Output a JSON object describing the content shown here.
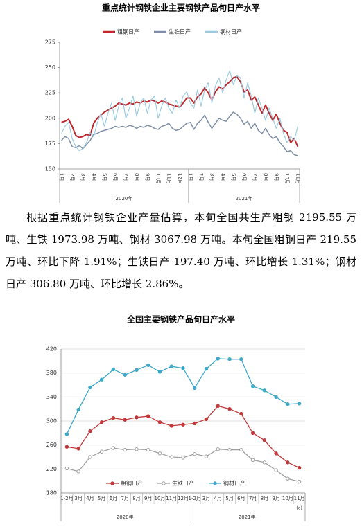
{
  "paragraph": "根据重点统计钢铁企业产量估算，本旬全国共生产粗钢 2195.55 万吨、生铁 1973.98 万吨、钢材 3067.98 万吨。本旬全国粗钢日产 219.55 万吨、环比下降 1.91%；生铁日产 197.40 万吨、环比增长 1.31%；钢材日产 306.80 万吨、环比增长 2.86%。",
  "chart_data": [
    {
      "type": "line",
      "title": "重点统计钢铁企业主要钢铁产品旬日产水平",
      "legend": "top",
      "grid": false,
      "markers": false,
      "ylim": [
        150,
        275
      ],
      "yticks": [
        150,
        175,
        200,
        225,
        250,
        275
      ],
      "groups": [
        "2020年",
        "2021年"
      ],
      "categories": [
        "1月",
        null,
        null,
        "2月",
        null,
        null,
        "3月",
        null,
        null,
        "4月",
        null,
        null,
        "5月",
        null,
        null,
        "6月",
        null,
        null,
        "7月",
        null,
        null,
        "8月",
        null,
        null,
        "9月",
        null,
        null,
        "10月",
        null,
        null,
        "11月",
        null,
        null,
        "12月",
        null,
        null,
        "1月",
        null,
        null,
        "2月",
        null,
        null,
        "3月",
        null,
        null,
        "4月",
        null,
        null,
        "5月",
        null,
        null,
        "6月",
        null,
        null,
        "7月",
        null,
        null,
        "8月",
        null,
        null,
        "9月",
        null,
        null,
        "10月",
        null,
        null,
        "11月"
      ],
      "series": [
        {
          "name": "粗钢日产",
          "color": "#c0282d",
          "width": 2,
          "values": [
            196,
            197,
            199,
            192,
            183,
            181,
            182,
            184,
            183,
            195,
            200,
            203,
            206,
            208,
            210,
            212,
            215,
            214,
            213,
            215,
            214,
            216,
            215,
            217,
            216,
            218,
            217,
            215,
            217,
            216,
            214,
            213,
            212,
            211,
            215,
            220,
            220,
            215,
            221,
            224,
            230,
            225,
            218,
            226,
            231,
            229,
            233,
            236,
            240,
            241,
            236,
            226,
            228,
            218,
            221,
            213,
            205,
            213,
            205,
            198,
            204,
            195,
            188,
            186,
            176,
            180,
            172
          ]
        },
        {
          "name": "生铁日产",
          "color": "#7f8fa6",
          "width": 1.5,
          "values": [
            178,
            182,
            180,
            172,
            171,
            173,
            170,
            174,
            178,
            184,
            185,
            187,
            188,
            189,
            190,
            192,
            191,
            192,
            191,
            193,
            192,
            190,
            192,
            191,
            193,
            192,
            190,
            189,
            192,
            193,
            195,
            190,
            188,
            189,
            192,
            195,
            196,
            189,
            195,
            198,
            203,
            196,
            190,
            195,
            200,
            198,
            197,
            202,
            206,
            204,
            200,
            194,
            197,
            190,
            195,
            188,
            185,
            190,
            184,
            180,
            182,
            176,
            172,
            167,
            168,
            164,
            163
          ]
        },
        {
          "name": "钢材日产",
          "color": "#9ccbe0",
          "width": 1.2,
          "values": [
            185,
            192,
            196,
            180,
            172,
            168,
            170,
            176,
            186,
            182,
            195,
            205,
            192,
            205,
            215,
            198,
            212,
            220,
            200,
            210,
            222,
            202,
            215,
            220,
            205,
            218,
            222,
            200,
            212,
            220,
            210,
            205,
            218,
            210,
            222,
            226,
            215,
            210,
            228,
            212,
            228,
            235,
            215,
            232,
            240,
            225,
            238,
            247,
            233,
            242,
            240,
            220,
            235,
            222,
            205,
            220,
            210,
            198,
            210,
            200,
            190,
            200,
            185,
            176,
            182,
            178,
            192
          ]
        }
      ]
    },
    {
      "type": "line",
      "title": "全国主要钢铁产品旬日产水平",
      "legend": "bottom",
      "grid": true,
      "markers": true,
      "note": "(e)",
      "ylim": [
        180,
        420
      ],
      "yticks": [
        180,
        220,
        260,
        300,
        340,
        380,
        420
      ],
      "groups": [
        "2020年",
        "2021年"
      ],
      "categories": [
        "1-2月",
        "3月",
        "4月",
        "5月",
        "6月",
        "7月",
        "8月",
        "9月",
        "10月",
        "11月",
        "12月",
        "1-2月",
        "3月",
        "4月",
        "5月",
        "6月",
        "7月",
        "8月",
        "9月",
        "10月",
        "11月"
      ],
      "series": [
        {
          "name": "粗钢日产",
          "color": "#c0393b",
          "width": 1.3,
          "values": [
            257,
            254,
            283,
            298,
            305,
            302,
            306,
            308,
            298,
            292,
            294,
            296,
            303,
            325,
            320,
            312,
            280,
            268,
            246,
            231,
            222
          ]
        },
        {
          "name": "生铁日产",
          "color": "#a0a0a0",
          "width": 1.3,
          "values": [
            221,
            216,
            240,
            249,
            255,
            252,
            253,
            252,
            246,
            240,
            239,
            245,
            241,
            253,
            252,
            252,
            235,
            231,
            218,
            204,
            199
          ]
        },
        {
          "name": "钢材日产",
          "color": "#3ea8c8",
          "width": 1.3,
          "values": [
            278,
            319,
            356,
            369,
            386,
            377,
            385,
            393,
            382,
            391,
            388,
            355,
            387,
            404,
            403,
            403,
            358,
            351,
            340,
            328,
            329
          ]
        }
      ]
    }
  ]
}
